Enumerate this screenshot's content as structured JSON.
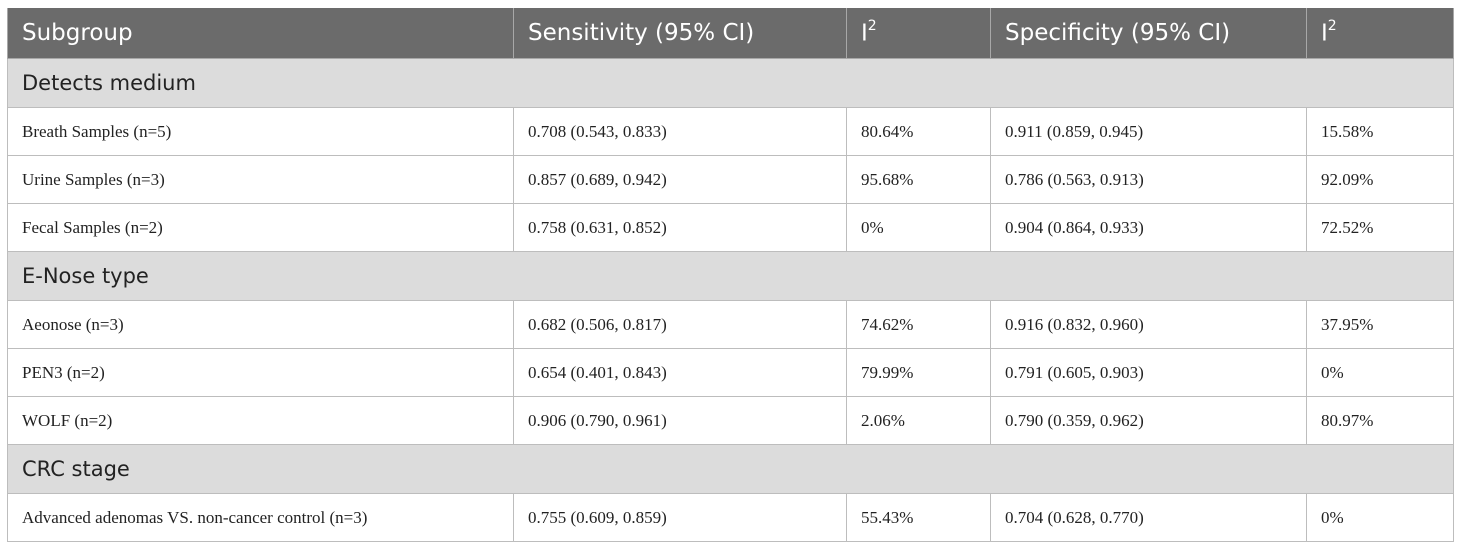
{
  "header": {
    "subgroup": "Subgroup",
    "sensitivity": "Sensitivity (95% CI)",
    "i2_base": "I",
    "i2_sup": "2",
    "specificity": "Specificity (95% CI)"
  },
  "groups": [
    {
      "title": "Detects medium",
      "rows": [
        {
          "subgroup": "Breath Samples (n=5)",
          "sensitivity": "0.708 (0.543, 0.833)",
          "i2_sens": "80.64%",
          "specificity": "0.911 (0.859, 0.945)",
          "i2_spec": "15.58%"
        },
        {
          "subgroup": "Urine Samples (n=3)",
          "sensitivity": "0.857 (0.689, 0.942)",
          "i2_sens": "95.68%",
          "specificity": "0.786 (0.563, 0.913)",
          "i2_spec": "92.09%"
        },
        {
          "subgroup": "Fecal Samples (n=2)",
          "sensitivity": "0.758 (0.631, 0.852)",
          "i2_sens": "0%",
          "specificity": "0.904 (0.864, 0.933)",
          "i2_spec": "72.52%"
        }
      ]
    },
    {
      "title": "E-Nose type",
      "rows": [
        {
          "subgroup": "Aeonose (n=3)",
          "sensitivity": "0.682 (0.506, 0.817)",
          "i2_sens": "74.62%",
          "specificity": "0.916 (0.832, 0.960)",
          "i2_spec": "37.95%"
        },
        {
          "subgroup": "PEN3 (n=2)",
          "sensitivity": "0.654 (0.401, 0.843)",
          "i2_sens": "79.99%",
          "specificity": "0.791 (0.605, 0.903)",
          "i2_spec": "0%"
        },
        {
          "subgroup": "WOLF (n=2)",
          "sensitivity": "0.906 (0.790, 0.961)",
          "i2_sens": "2.06%",
          "specificity": "0.790 (0.359, 0.962)",
          "i2_spec": "80.97%"
        }
      ]
    },
    {
      "title": "CRC stage",
      "rows": [
        {
          "subgroup": "Advanced adenomas VS. non-cancer control (n=3)",
          "sensitivity": "0.755 (0.609, 0.859)",
          "i2_sens": "55.43%",
          "specificity": "0.704 (0.628, 0.770)",
          "i2_spec": "0%"
        }
      ]
    }
  ],
  "colors": {
    "header_bg": "#6b6b6b",
    "group_bg": "#dcdcdc",
    "border": "#bdbdbd"
  }
}
